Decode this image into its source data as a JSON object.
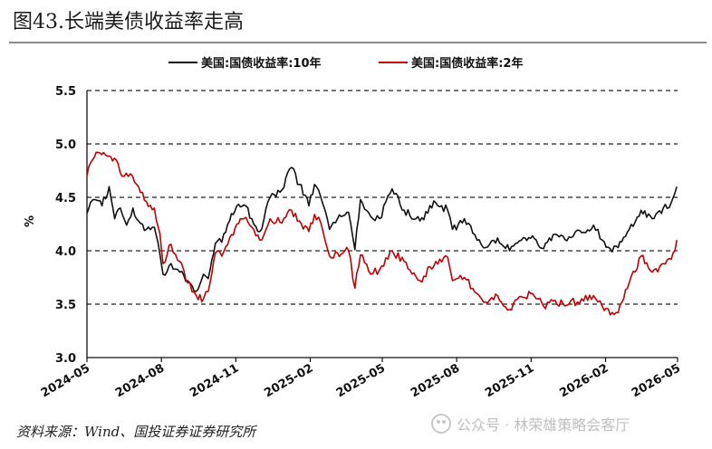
{
  "figure": {
    "title": "图43.长端美债收益率走高",
    "source": "资料来源：Wind、国投证券证券研究所",
    "watermark": "公众号 · 林荣雄策略会客厅"
  },
  "chart_data": {
    "type": "line",
    "title": "",
    "xlabel": "",
    "ylabel": "%",
    "ylim": [
      3.0,
      5.5
    ],
    "yticks": [
      "3.0",
      "3.5",
      "4.0",
      "4.5",
      "5.0",
      "5.5"
    ],
    "xlim": [
      "2024-05",
      "2026-05"
    ],
    "xticks": [
      "2024-05",
      "2024-08",
      "2024-11",
      "2025-02",
      "2025-05",
      "2025-08",
      "2025-11",
      "2026-02",
      "2026-05"
    ],
    "grid": "horizontal dashed",
    "legend_position": "top-center",
    "series": [
      {
        "name": "美国:国债收益率:10年",
        "color": "#111111",
        "points": [
          [
            "2024-05-01",
            4.35
          ],
          [
            "2024-05-10",
            4.48
          ],
          [
            "2024-05-20",
            4.42
          ],
          [
            "2024-05-29",
            4.6
          ],
          [
            "2024-06-05",
            4.3
          ],
          [
            "2024-06-12",
            4.4
          ],
          [
            "2024-06-20",
            4.24
          ],
          [
            "2024-06-28",
            4.4
          ],
          [
            "2024-07-05",
            4.28
          ],
          [
            "2024-07-15",
            4.2
          ],
          [
            "2024-07-25",
            4.22
          ],
          [
            "2024-08-01",
            3.97
          ],
          [
            "2024-08-05",
            3.78
          ],
          [
            "2024-08-15",
            3.88
          ],
          [
            "2024-08-26",
            3.8
          ],
          [
            "2024-09-05",
            3.72
          ],
          [
            "2024-09-16",
            3.62
          ],
          [
            "2024-09-25",
            3.78
          ],
          [
            "2024-10-01",
            3.74
          ],
          [
            "2024-10-10",
            4.07
          ],
          [
            "2024-10-18",
            4.08
          ],
          [
            "2024-10-28",
            4.28
          ],
          [
            "2024-11-06",
            4.42
          ],
          [
            "2024-11-15",
            4.43
          ],
          [
            "2024-11-25",
            4.3
          ],
          [
            "2024-12-05",
            4.18
          ],
          [
            "2024-12-18",
            4.5
          ],
          [
            "2025-01-02",
            4.57
          ],
          [
            "2025-01-14",
            4.78
          ],
          [
            "2025-01-24",
            4.62
          ],
          [
            "2025-02-05",
            4.42
          ],
          [
            "2025-02-12",
            4.62
          ],
          [
            "2025-02-20",
            4.5
          ],
          [
            "2025-03-03",
            4.2
          ],
          [
            "2025-03-13",
            4.3
          ],
          [
            "2025-03-27",
            4.36
          ],
          [
            "2025-04-04",
            4.01
          ],
          [
            "2025-04-11",
            4.48
          ],
          [
            "2025-04-24",
            4.32
          ],
          [
            "2025-05-05",
            4.3
          ],
          [
            "2025-05-21",
            4.58
          ],
          [
            "2025-06-05",
            4.38
          ],
          [
            "2025-06-25",
            4.28
          ],
          [
            "2025-07-15",
            4.45
          ],
          [
            "2025-07-30",
            4.38
          ],
          [
            "2025-08-05",
            4.2
          ],
          [
            "2025-08-20",
            4.3
          ],
          [
            "2025-09-05",
            4.1
          ],
          [
            "2025-09-16",
            4.03
          ],
          [
            "2025-10-01",
            4.12
          ],
          [
            "2025-10-16",
            4.0
          ],
          [
            "2025-10-31",
            4.1
          ],
          [
            "2025-11-14",
            4.14
          ],
          [
            "2025-11-28",
            4.02
          ],
          [
            "2025-12-10",
            4.15
          ],
          [
            "2025-12-30",
            4.13
          ],
          [
            "2026-01-15",
            4.17
          ],
          [
            "2026-01-30",
            4.24
          ],
          [
            "2026-02-10",
            4.1
          ],
          [
            "2026-02-20",
            4.02
          ],
          [
            "2026-03-02",
            4.03
          ],
          [
            "2026-03-16",
            4.2
          ],
          [
            "2026-03-31",
            4.38
          ],
          [
            "2026-04-14",
            4.3
          ],
          [
            "2026-04-28",
            4.4
          ],
          [
            "2026-05-08",
            4.45
          ],
          [
            "2026-05-15",
            4.6
          ]
        ]
      },
      {
        "name": "美国:国债收益率:2年",
        "color": "#c00000",
        "points": [
          [
            "2024-05-01",
            4.7
          ],
          [
            "2024-05-08",
            4.85
          ],
          [
            "2024-05-15",
            4.92
          ],
          [
            "2024-05-24",
            4.9
          ],
          [
            "2024-05-31",
            4.88
          ],
          [
            "2024-06-07",
            4.85
          ],
          [
            "2024-06-14",
            4.7
          ],
          [
            "2024-06-25",
            4.72
          ],
          [
            "2024-07-05",
            4.6
          ],
          [
            "2024-07-15",
            4.46
          ],
          [
            "2024-07-25",
            4.4
          ],
          [
            "2024-08-01",
            4.16
          ],
          [
            "2024-08-05",
            3.88
          ],
          [
            "2024-08-15",
            4.06
          ],
          [
            "2024-08-26",
            3.9
          ],
          [
            "2024-09-05",
            3.7
          ],
          [
            "2024-09-16",
            3.58
          ],
          [
            "2024-09-25",
            3.55
          ],
          [
            "2024-10-01",
            3.62
          ],
          [
            "2024-10-10",
            3.98
          ],
          [
            "2024-10-18",
            3.95
          ],
          [
            "2024-10-28",
            4.12
          ],
          [
            "2024-11-06",
            4.25
          ],
          [
            "2024-11-15",
            4.3
          ],
          [
            "2024-11-25",
            4.22
          ],
          [
            "2024-12-05",
            4.1
          ],
          [
            "2024-12-18",
            4.3
          ],
          [
            "2025-01-02",
            4.26
          ],
          [
            "2025-01-14",
            4.38
          ],
          [
            "2025-01-24",
            4.28
          ],
          [
            "2025-02-05",
            4.18
          ],
          [
            "2025-02-12",
            4.34
          ],
          [
            "2025-02-20",
            4.26
          ],
          [
            "2025-03-03",
            3.95
          ],
          [
            "2025-03-13",
            3.98
          ],
          [
            "2025-03-27",
            4.0
          ],
          [
            "2025-04-04",
            3.65
          ],
          [
            "2025-04-11",
            3.96
          ],
          [
            "2025-04-24",
            3.78
          ],
          [
            "2025-05-05",
            3.82
          ],
          [
            "2025-05-21",
            4.0
          ],
          [
            "2025-06-05",
            3.9
          ],
          [
            "2025-06-25",
            3.72
          ],
          [
            "2025-07-15",
            3.9
          ],
          [
            "2025-07-30",
            3.94
          ],
          [
            "2025-08-05",
            3.72
          ],
          [
            "2025-08-20",
            3.75
          ],
          [
            "2025-09-05",
            3.6
          ],
          [
            "2025-09-16",
            3.52
          ],
          [
            "2025-10-01",
            3.58
          ],
          [
            "2025-10-16",
            3.45
          ],
          [
            "2025-10-31",
            3.57
          ],
          [
            "2025-11-14",
            3.6
          ],
          [
            "2025-11-28",
            3.48
          ],
          [
            "2025-12-10",
            3.53
          ],
          [
            "2025-12-30",
            3.5
          ],
          [
            "2026-01-15",
            3.55
          ],
          [
            "2026-01-30",
            3.58
          ],
          [
            "2026-02-10",
            3.48
          ],
          [
            "2026-02-20",
            3.4
          ],
          [
            "2026-03-02",
            3.42
          ],
          [
            "2026-03-16",
            3.7
          ],
          [
            "2026-03-31",
            3.95
          ],
          [
            "2026-04-14",
            3.8
          ],
          [
            "2026-04-28",
            3.88
          ],
          [
            "2026-05-08",
            3.92
          ],
          [
            "2026-05-15",
            4.1
          ]
        ]
      }
    ]
  }
}
